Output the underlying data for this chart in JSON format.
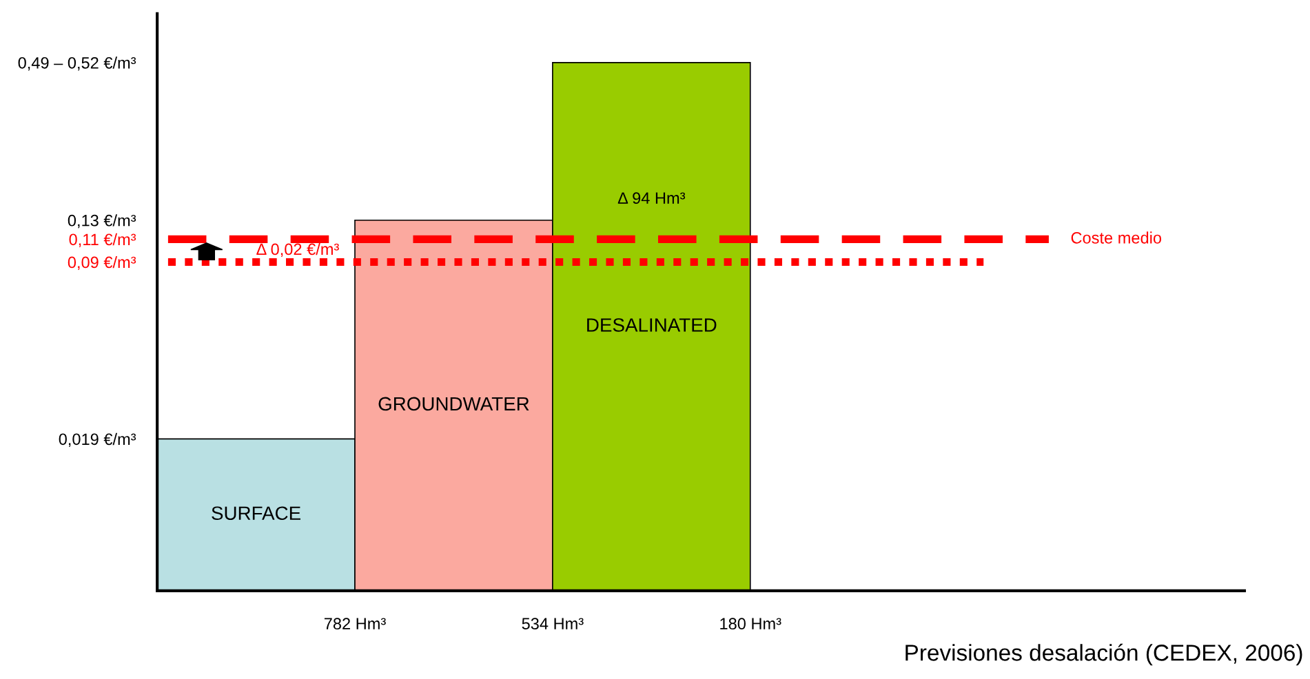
{
  "chart_data": {
    "type": "bar",
    "categories": [
      "SURFACE",
      "GROUNDWATER",
      "DESALINATED"
    ],
    "values": [
      0.019,
      0.13,
      0.52
    ],
    "colors": [
      "#b9e0e3",
      "#fba99f",
      "#99cc00"
    ],
    "log": true,
    "ylim": [
      0.005,
      0.8
    ],
    "yticks": [
      {
        "value": 0.019,
        "label": "0,019 €/m³"
      },
      {
        "value": 0.09,
        "label": "0,09 €/m³"
      },
      {
        "value": 0.11,
        "label": "0,11 €/m³"
      },
      {
        "value": 0.13,
        "label": "0,13 €/m³"
      },
      {
        "value": 0.52,
        "label": "0,49 – 0,52 €/m³"
      }
    ],
    "ref_lines": [
      {
        "axis": "y",
        "value": 0.11,
        "label": "Coste medio",
        "color": "#ff0000",
        "line_style": "dashed"
      },
      {
        "axis": "y",
        "value": 0.09,
        "label": null,
        "color": "#ff0000",
        "line_style": "dotted"
      }
    ],
    "annotations": [
      "782 Hm³",
      "534 Hm³",
      "180 Hm³",
      "Δ 94 Hm³",
      "Δ 0,02 €/m³",
      "Previsiones desalación (CEDEX, 2006)"
    ],
    "grid": false,
    "legend": false
  }
}
